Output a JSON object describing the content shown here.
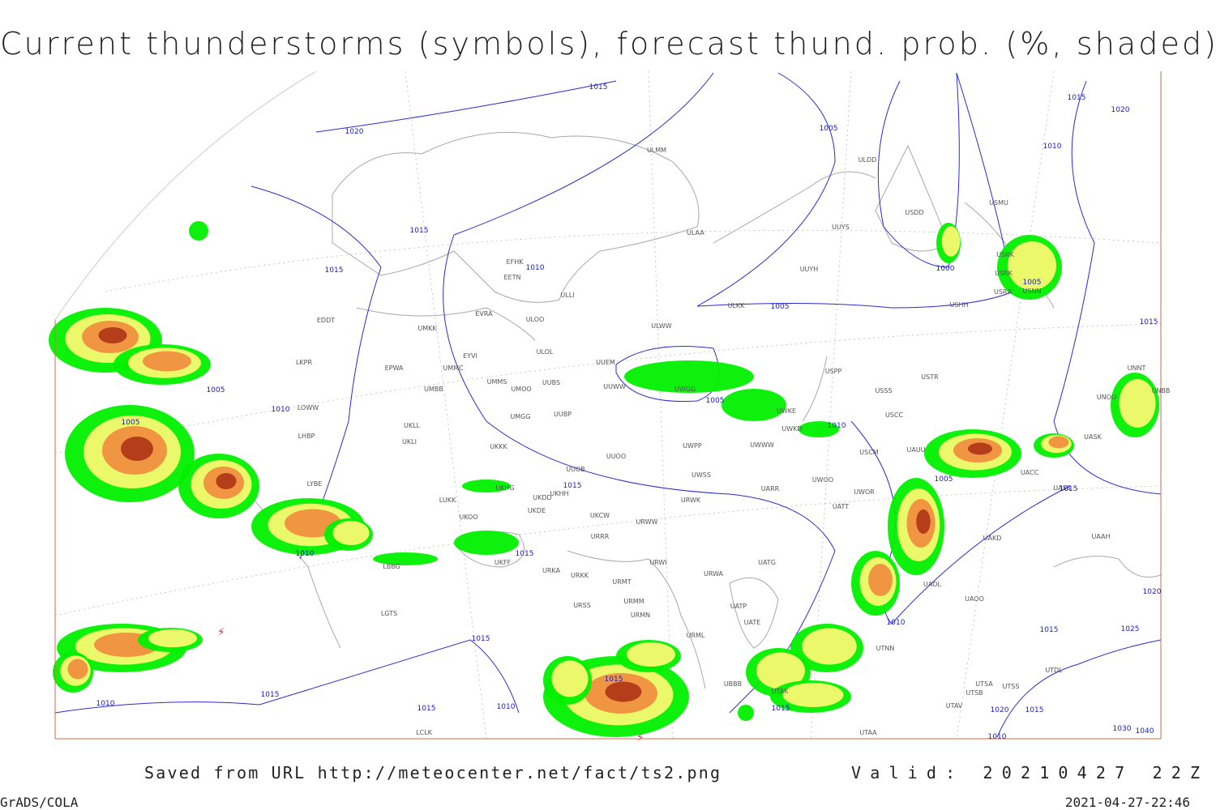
{
  "header": {
    "title": "Current thunderstorms (symbols), forecast thund. prob. (%, shaded)"
  },
  "map": {
    "stations": [
      "ULMM",
      "ULDD",
      "USDD",
      "USMU",
      "UUYS",
      "ULAA",
      "EFHK",
      "EETN",
      "ULLI",
      "UUYH",
      "USRK",
      "USRK",
      "USHH",
      "USRR",
      "USNN",
      "ULKK",
      "EVRA",
      "EDDT",
      "UMKK",
      "ULOO",
      "ULWW",
      "UUEM",
      "EYVI",
      "ULOL",
      "UMMC",
      "LKPR",
      "EPWA",
      "UUWW",
      "UMMS",
      "UMOO",
      "UUBS",
      "UWGG",
      "UMBB",
      "USPP",
      "USTR",
      "USSS",
      "LOWW",
      "UKLL",
      "UUBP",
      "UMGG",
      "UWKE",
      "UWKD",
      "USCC",
      "UKLI",
      "LHBP",
      "UKKK",
      "UWPP",
      "UWWW",
      "USCM",
      "UUOO",
      "UUOB",
      "UWSS",
      "LYBE",
      "UARR",
      "UWOO",
      "UWOR",
      "UKHH",
      "UKHG",
      "UKDD",
      "LUKK",
      "UKOO",
      "UKDE",
      "UKCW",
      "URWW",
      "URWK",
      "UATT",
      "URRR",
      "UAKD",
      "UAAH",
      "LBBG",
      "UKFF",
      "URKA",
      "URKK",
      "URWI",
      "UATG",
      "URMT",
      "URWA",
      "UAOL",
      "UAOO",
      "URSS",
      "URMM",
      "UATP",
      "URMN",
      "UATE",
      "LGTS",
      "URML",
      "UTNN",
      "UTSA",
      "UTSB",
      "UTSS",
      "UTAV",
      "UBBB",
      "UTAK",
      "UTAA",
      "LCLK",
      "UTDL",
      "UNNT",
      "UNBB",
      "UNOO",
      "UASK",
      "UAUU",
      "UACC",
      "UASS"
    ],
    "isobar_labels": [
      1015,
      1020,
      1005,
      1015,
      1020,
      1010,
      1015,
      1010,
      1015,
      1000,
      1005,
      1005,
      1015,
      1005,
      1005,
      1010,
      1005,
      1010,
      1005,
      1015,
      1015,
      1010,
      1015,
      1020,
      1010,
      1015,
      1025,
      1015,
      1015,
      1015,
      1010,
      1015,
      1010,
      1015,
      1020,
      1015,
      1040,
      1030,
      1010
    ]
  },
  "footer": {
    "saved": "Saved from URL http://meteocenter.net/fact/ts2.png",
    "valid": "Valid: 20210427 22Z",
    "software": "GrADS/COLA",
    "timestamp": "2021-04-27-22:46"
  }
}
